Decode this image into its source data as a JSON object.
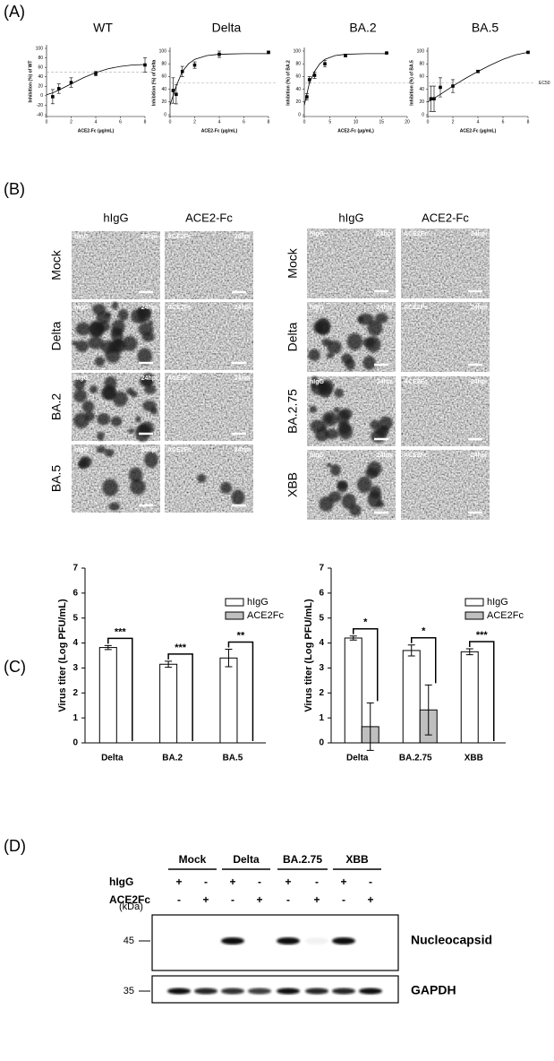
{
  "panel_labels": [
    "(A)",
    "(B)",
    "(C)",
    "(D)"
  ],
  "chart_data": [
    {
      "type": "scatter",
      "title": "WT",
      "x_label": "ACE2-Fc (μg/mL)",
      "y_label": "Inhibition (%) of WT",
      "points": {
        "x": [
          0.5,
          1,
          2,
          4,
          8
        ],
        "values": [
          -2,
          15,
          28,
          47,
          65
        ],
        "errors": [
          15,
          10,
          10,
          5,
          15
        ]
      },
      "curve": {
        "x": [
          0,
          0.5,
          1,
          2,
          3,
          4,
          5,
          6,
          7,
          8
        ],
        "values": [
          2,
          6,
          12,
          25,
          38,
          49,
          57,
          62,
          65,
          66
        ]
      },
      "xlim": [
        0,
        8
      ],
      "xticks": [
        0,
        2,
        4,
        6,
        8
      ],
      "ylim": [
        -40,
        100
      ],
      "yticks": [
        -40,
        -20,
        0,
        20,
        40,
        60,
        80,
        100
      ],
      "reference_line": 50,
      "color": "#000000"
    },
    {
      "type": "scatter",
      "title": "Delta",
      "x_label": "ACE2-Fc (μg/mL)",
      "y_label": "Inhibition (%) of Delta",
      "points": {
        "x": [
          0.25,
          0.5,
          1,
          2,
          4,
          8
        ],
        "values": [
          38,
          32,
          68,
          78,
          95,
          98
        ],
        "errors": [
          20,
          15,
          8,
          5,
          5,
          2
        ]
      },
      "curve": {
        "x": [
          0,
          0.5,
          1,
          1.5,
          2,
          3,
          4,
          6,
          8
        ],
        "values": [
          15,
          45,
          68,
          80,
          87,
          93,
          95,
          96,
          96
        ]
      },
      "xlim": [
        0,
        8
      ],
      "xticks": [
        0,
        2,
        4,
        6,
        8
      ],
      "ylim": [
        0,
        100
      ],
      "yticks": [
        0,
        20,
        40,
        60,
        80,
        100
      ],
      "reference_line": 50,
      "color": "#000000"
    },
    {
      "type": "scatter",
      "title": "BA.2",
      "x_label": "ACE2-Fc (μg/mL)",
      "y_label": "Inhibition (%) of BA.2",
      "points": {
        "x": [
          0.5,
          1,
          2,
          4,
          8,
          16
        ],
        "values": [
          28,
          55,
          62,
          80,
          93,
          97
        ],
        "errors": [
          5,
          5,
          5,
          5,
          2,
          1
        ]
      },
      "curve": {
        "x": [
          0,
          1,
          2,
          3,
          4,
          6,
          8,
          12,
          16
        ],
        "values": [
          15,
          50,
          68,
          80,
          87,
          93,
          95,
          96,
          96
        ]
      },
      "xlim": [
        0,
        20
      ],
      "xticks": [
        0,
        5,
        10,
        15,
        20
      ],
      "ylim": [
        0,
        100
      ],
      "yticks": [
        0,
        20,
        40,
        60,
        80,
        100
      ],
      "reference_line": 50,
      "color": "#000000"
    },
    {
      "type": "scatter",
      "title": "BA.5",
      "x_label": "ACE2-Fc (μg/mL)",
      "y_label": "Inhibition (%) of BA.5",
      "points": {
        "x": [
          0.25,
          0.5,
          1,
          2,
          4,
          8
        ],
        "values": [
          25,
          25,
          43,
          45,
          68,
          98
        ],
        "errors": [
          20,
          20,
          15,
          10,
          2,
          1
        ]
      },
      "curve": {
        "x": [
          0,
          1,
          2,
          3,
          4,
          5,
          6,
          7,
          8
        ],
        "values": [
          20,
          32,
          45,
          57,
          68,
          78,
          87,
          94,
          98
        ]
      },
      "xlim": [
        0,
        8
      ],
      "xticks": [
        0,
        2,
        4,
        6,
        8
      ],
      "ylim": [
        0,
        100
      ],
      "yticks": [
        0,
        20,
        40,
        60,
        80,
        100
      ],
      "reference_line": 50,
      "reference_label": "EC50",
      "color": "#000000"
    },
    {
      "type": "bar",
      "y_label": "Virus titer (Log PFU/mL)",
      "categories": [
        "Delta",
        "BA.2",
        "BA.5"
      ],
      "series": [
        {
          "name": "hIgG",
          "color": "#ffffff",
          "values": [
            3.82,
            3.15,
            3.4
          ],
          "errors": [
            0.08,
            0.12,
            0.35
          ]
        },
        {
          "name": "ACE2Fc",
          "color": "#bfbfbf",
          "values": [
            0,
            0,
            0
          ],
          "errors": [
            0,
            0,
            0
          ]
        }
      ],
      "significance": [
        "***",
        "***",
        "**"
      ],
      "ylim": [
        0,
        7
      ],
      "yticks": [
        0,
        1,
        2,
        3,
        4,
        5,
        6,
        7
      ],
      "legend": "top-right"
    },
    {
      "type": "bar",
      "y_label": "Virus titer (Log PFU/mL)",
      "categories": [
        "Delta",
        "BA.2.75",
        "XBB"
      ],
      "series": [
        {
          "name": "hIgG",
          "color": "#ffffff",
          "values": [
            4.2,
            3.7,
            3.65
          ],
          "errors": [
            0.08,
            0.22,
            0.12
          ]
        },
        {
          "name": "ACE2Fc",
          "color": "#bfbfbf",
          "values": [
            0.65,
            1.32,
            0
          ],
          "errors": [
            0.95,
            1.0,
            0
          ]
        }
      ],
      "significance": [
        "*",
        "*",
        "***"
      ],
      "ylim": [
        0,
        7
      ],
      "yticks": [
        0,
        1,
        2,
        3,
        4,
        5,
        6,
        7
      ],
      "legend": "top-right"
    }
  ],
  "panel_b": {
    "left": {
      "columns": [
        "hIgG",
        "ACE2-Fc"
      ],
      "rows": [
        "Mock",
        "Delta",
        "BA.2",
        "BA.5"
      ],
      "image_tags": [
        "hIgG",
        "ACE2Fc"
      ],
      "time": "24hpi"
    },
    "right": {
      "columns": [
        "hIgG",
        "ACE2-Fc"
      ],
      "rows": [
        "Mock",
        "Delta",
        "BA.2.75",
        "XBB"
      ],
      "image_tags": [
        "hIgG",
        "ACE2Fc"
      ],
      "time": "24hpi"
    }
  },
  "panel_d": {
    "groups": [
      "Mock",
      "Delta",
      "BA.2.75",
      "XBB"
    ],
    "rows": [
      {
        "label": "hIgG",
        "signs": [
          "+",
          "-",
          "+",
          "-",
          "+",
          "-",
          "+",
          "-"
        ]
      },
      {
        "label": "ACE2Fc",
        "signs": [
          "-",
          "+",
          "-",
          "+",
          "-",
          "+",
          "-",
          "+"
        ]
      }
    ],
    "unit": "(kDa)",
    "blots": [
      {
        "name": "Nucleocapsid",
        "marker": 45
      },
      {
        "name": "GAPDH",
        "marker": 35
      }
    ]
  }
}
